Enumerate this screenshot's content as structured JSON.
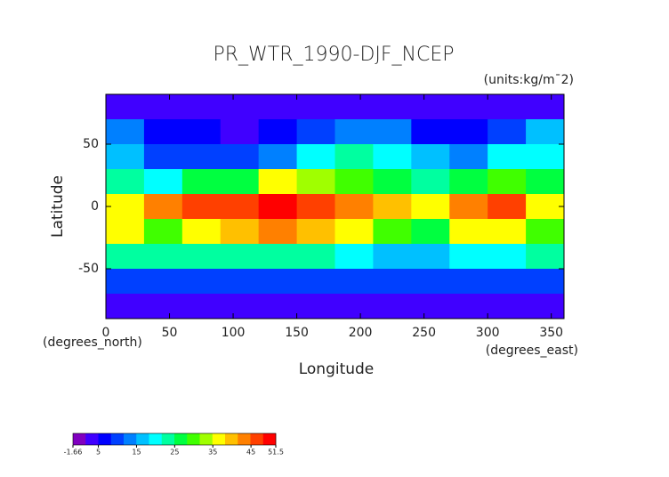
{
  "chart_data": {
    "type": "heatmap",
    "title": "PR_WTR_1990-DJF_NCEP",
    "units": "(units:kg/m¯2)",
    "x_label": "Longitude",
    "y_label": "Latitude",
    "x_unit": "(degrees_east)",
    "y_unit": "(degrees_north)",
    "xlim": [
      0,
      360
    ],
    "ylim": [
      -90,
      90
    ],
    "xticks": [
      0,
      50,
      100,
      150,
      200,
      250,
      300,
      350
    ],
    "yticks": [
      -50,
      0,
      50
    ],
    "lon": [
      15,
      45,
      75,
      105,
      135,
      165,
      195,
      225,
      255,
      285,
      315,
      345
    ],
    "lat": [
      80,
      60,
      40,
      20,
      0,
      -20,
      -40,
      -60,
      -80
    ],
    "values": [
      [
        4,
        4,
        3,
        3,
        4,
        4,
        3,
        2,
        3,
        3,
        4,
        4
      ],
      [
        14,
        8,
        5,
        4,
        5,
        9,
        12,
        12,
        6,
        5,
        10,
        16
      ],
      [
        15,
        10,
        10,
        10,
        14,
        20,
        22,
        20,
        16,
        12,
        20,
        20
      ],
      [
        22,
        20,
        28,
        25,
        35,
        32,
        30,
        26,
        22,
        25,
        30,
        25
      ],
      [
        35,
        42,
        45,
        48,
        50,
        46,
        42,
        40,
        35,
        42,
        45,
        38
      ],
      [
        38,
        30,
        38,
        40,
        42,
        40,
        35,
        30,
        25,
        38,
        35,
        30
      ],
      [
        22,
        22,
        22,
        22,
        24,
        22,
        20,
        18,
        18,
        20,
        20,
        22
      ],
      [
        10,
        10,
        10,
        10,
        10,
        10,
        10,
        10,
        10,
        10,
        10,
        10
      ],
      [
        3,
        3,
        3,
        3,
        3,
        3,
        2,
        2,
        3,
        3,
        3,
        3
      ]
    ],
    "colorbar": {
      "lim": [
        -1.66,
        51.5
      ],
      "ticks": [
        -1.66,
        5,
        15,
        25,
        35,
        45,
        51.5
      ]
    },
    "colormap": [
      "#8000c0",
      "#4000ff",
      "#0000ff",
      "#0040ff",
      "#0080ff",
      "#00c0ff",
      "#00ffff",
      "#00ffa0",
      "#00ff40",
      "#40ff00",
      "#a0ff00",
      "#ffff00",
      "#ffc000",
      "#ff8000",
      "#ff4000",
      "#ff0000"
    ]
  }
}
